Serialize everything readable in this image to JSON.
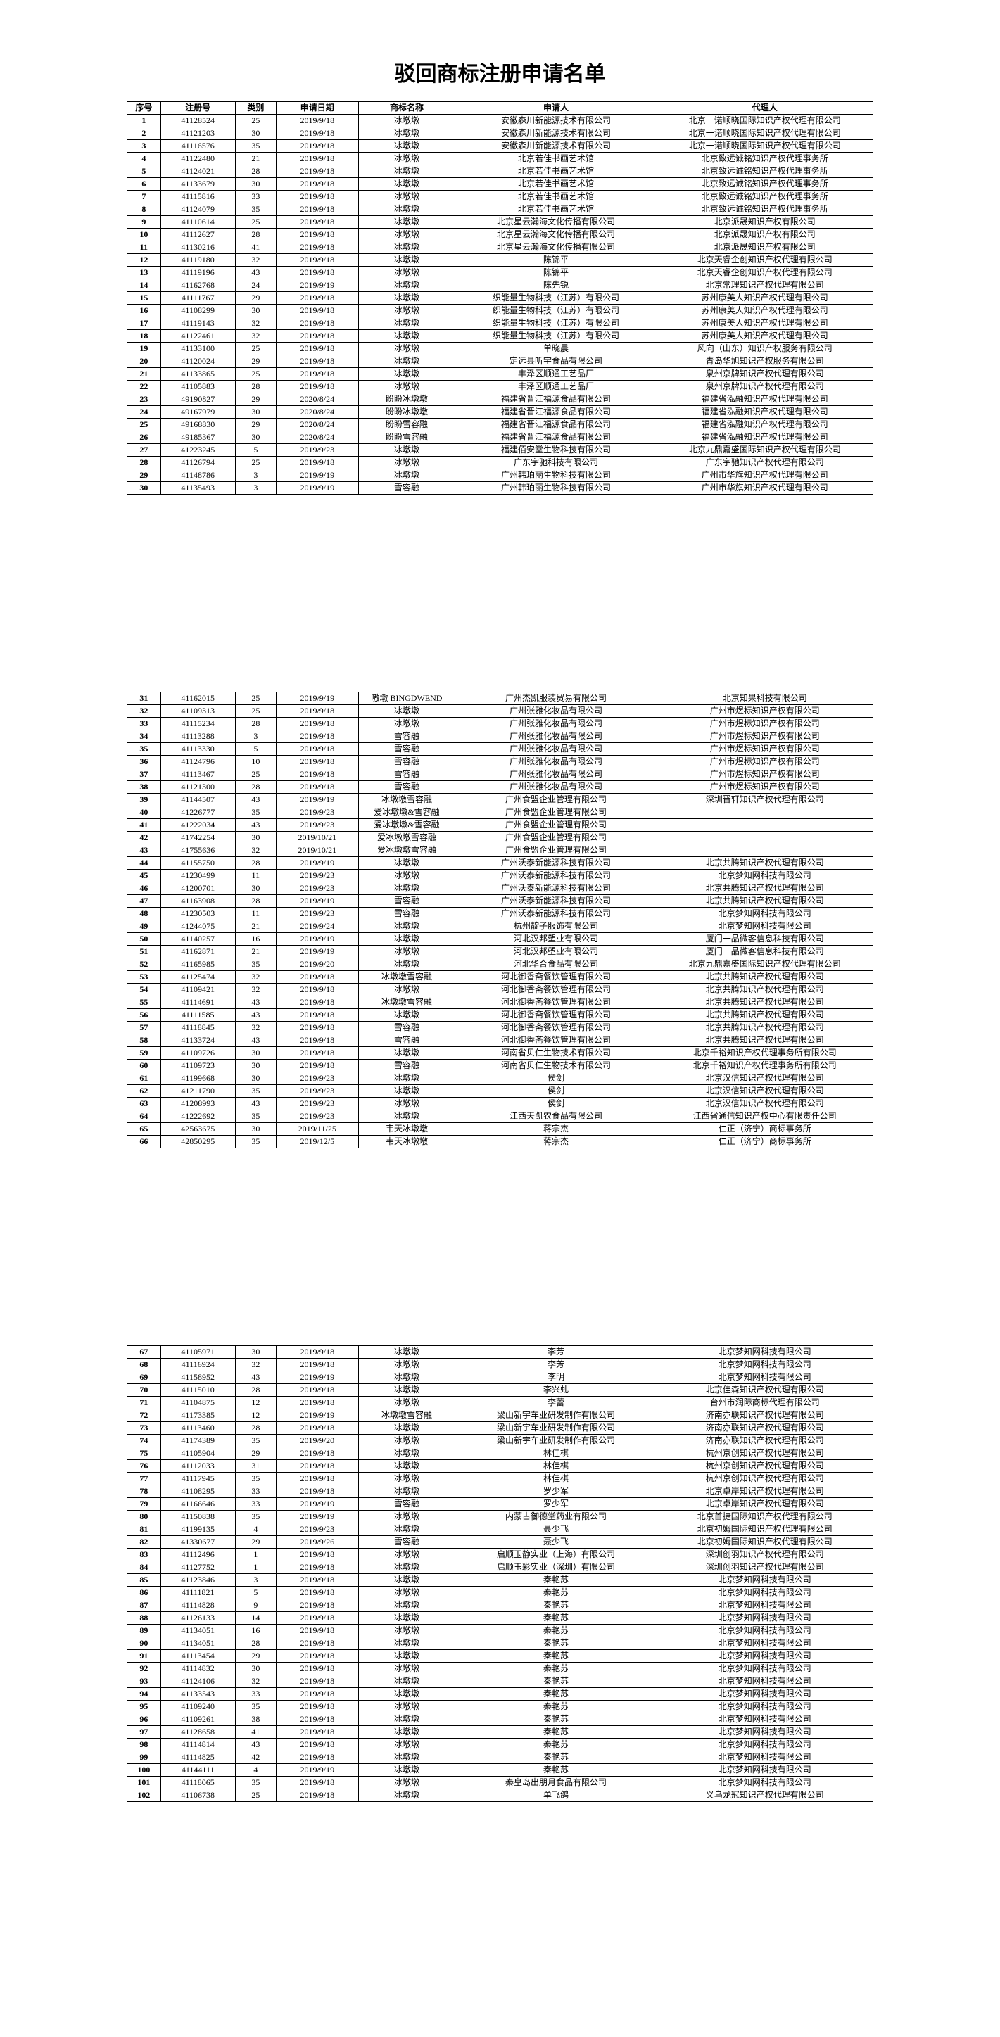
{
  "title": "驳回商标注册申请名单",
  "columns": [
    "序号",
    "注册号",
    "类别",
    "申请日期",
    "商标名称",
    "申请人",
    "代理人"
  ],
  "pages": [
    {
      "showTitle": true,
      "showHeader": true,
      "rows": [
        [
          "1",
          "41128524",
          "25",
          "2019/9/18",
          "冰墩墩",
          "安徽森川新能源技术有限公司",
          "北京一诺顺晓国际知识产权代理有限公司"
        ],
        [
          "2",
          "41121203",
          "30",
          "2019/9/18",
          "冰墩墩",
          "安徽森川新能源技术有限公司",
          "北京一诺顺晓国际知识产权代理有限公司"
        ],
        [
          "3",
          "41116576",
          "35",
          "2019/9/18",
          "冰墩墩",
          "安徽森川新能源技术有限公司",
          "北京一诺顺晓国际知识产权代理有限公司"
        ],
        [
          "4",
          "41122480",
          "21",
          "2019/9/18",
          "冰墩墩",
          "北京若佳书画艺术馆",
          "北京致远诚铭知识产权代理事务所"
        ],
        [
          "5",
          "41124021",
          "28",
          "2019/9/18",
          "冰墩墩",
          "北京若佳书画艺术馆",
          "北京致远诚铭知识产权代理事务所"
        ],
        [
          "6",
          "41133679",
          "30",
          "2019/9/18",
          "冰墩墩",
          "北京若佳书画艺术馆",
          "北京致远诚铭知识产权代理事务所"
        ],
        [
          "7",
          "41115816",
          "33",
          "2019/9/18",
          "冰墩墩",
          "北京若佳书画艺术馆",
          "北京致远诚铭知识产权代理事务所"
        ],
        [
          "8",
          "41124079",
          "35",
          "2019/9/18",
          "冰墩墩",
          "北京若佳书画艺术馆",
          "北京致远诚铭知识产权代理事务所"
        ],
        [
          "9",
          "41110614",
          "25",
          "2019/9/18",
          "冰墩墩",
          "北京星云瀚海文化传播有限公司",
          "北京派晟知识产权有限公司"
        ],
        [
          "10",
          "41112627",
          "28",
          "2019/9/18",
          "冰墩墩",
          "北京星云瀚海文化传播有限公司",
          "北京派晟知识产权有限公司"
        ],
        [
          "11",
          "41130216",
          "41",
          "2019/9/18",
          "冰墩墩",
          "北京星云瀚海文化传播有限公司",
          "北京派晟知识产权有限公司"
        ],
        [
          "12",
          "41119180",
          "32",
          "2019/9/18",
          "冰墩墩",
          "陈锦平",
          "北京天睿企创知识产权代理有限公司"
        ],
        [
          "13",
          "41119196",
          "43",
          "2019/9/18",
          "冰墩墩",
          "陈锦平",
          "北京天睿企创知识产权代理有限公司"
        ],
        [
          "14",
          "41162768",
          "24",
          "2019/9/19",
          "冰墩墩",
          "陈先锐",
          "北京常理知识产权代理有限公司"
        ],
        [
          "15",
          "41111767",
          "29",
          "2019/9/18",
          "冰墩墩",
          "织能量生物科技（江苏）有限公司",
          "苏州康美人知识产权代理有限公司"
        ],
        [
          "16",
          "41108299",
          "30",
          "2019/9/18",
          "冰墩墩",
          "织能量生物科技（江苏）有限公司",
          "苏州康美人知识产权代理有限公司"
        ],
        [
          "17",
          "41119143",
          "32",
          "2019/9/18",
          "冰墩墩",
          "织能量生物科技（江苏）有限公司",
          "苏州康美人知识产权代理有限公司"
        ],
        [
          "18",
          "41122461",
          "32",
          "2019/9/18",
          "冰墩墩",
          "织能量生物科技（江苏）有限公司",
          "苏州康美人知识产权代理有限公司"
        ],
        [
          "19",
          "41133100",
          "25",
          "2019/9/18",
          "冰墩墩",
          "单晓晨",
          "风向（山东）知识产权服务有限公司"
        ],
        [
          "20",
          "41120024",
          "29",
          "2019/9/18",
          "冰墩墩",
          "定远县听宇食品有限公司",
          "青岛华旭知识产权服务有限公司"
        ],
        [
          "21",
          "41133865",
          "25",
          "2019/9/18",
          "冰墩墩",
          "丰泽区顺通工艺品厂",
          "泉州京牌知识产权代理有限公司"
        ],
        [
          "22",
          "41105883",
          "28",
          "2019/9/18",
          "冰墩墩",
          "丰泽区顺通工艺品厂",
          "泉州京牌知识产权代理有限公司"
        ],
        [
          "23",
          "49190827",
          "29",
          "2020/8/24",
          "盼盼冰墩墩",
          "福建省晋江福源食品有限公司",
          "福建省泓融知识产权代理有限公司"
        ],
        [
          "24",
          "49167979",
          "30",
          "2020/8/24",
          "盼盼冰墩墩",
          "福建省晋江福源食品有限公司",
          "福建省泓融知识产权代理有限公司"
        ],
        [
          "25",
          "49168830",
          "29",
          "2020/8/24",
          "盼盼雪容融",
          "福建省晋江福源食品有限公司",
          "福建省泓融知识产权代理有限公司"
        ],
        [
          "26",
          "49185367",
          "30",
          "2020/8/24",
          "盼盼雪容融",
          "福建省晋江福源食品有限公司",
          "福建省泓融知识产权代理有限公司"
        ],
        [
          "27",
          "41223245",
          "5",
          "2019/9/23",
          "冰墩墩",
          "福建佰安堂生物科技有限公司",
          "北京九鼎嘉盛国际知识产权代理有限公司"
        ],
        [
          "28",
          "41126794",
          "25",
          "2019/9/18",
          "冰墩墩",
          "广东宇驰科技有限公司",
          "广东宇驰知识产权代理有限公司"
        ],
        [
          "29",
          "41148786",
          "3",
          "2019/9/19",
          "冰墩墩",
          "广州韩珀丽生物科技有限公司",
          "广州市华旗知识产权代理有限公司"
        ],
        [
          "30",
          "41135493",
          "3",
          "2019/9/19",
          "雪容融",
          "广州韩珀丽生物科技有限公司",
          "广州市华旗知识产权代理有限公司"
        ]
      ]
    },
    {
      "showTitle": false,
      "showHeader": false,
      "rows": [
        [
          "31",
          "41162015",
          "25",
          "2019/9/19",
          "嗷墩 BINGDWEND",
          "广州杰凯服装贸易有限公司",
          "北京知果科技有限公司"
        ],
        [
          "32",
          "41109313",
          "25",
          "2019/9/18",
          "冰墩墩",
          "广州张雅化妆品有限公司",
          "广州市煜标知识产权有限公司"
        ],
        [
          "33",
          "41115234",
          "28",
          "2019/9/18",
          "冰墩墩",
          "广州张雅化妆品有限公司",
          "广州市煜标知识产权有限公司"
        ],
        [
          "34",
          "41113288",
          "3",
          "2019/9/18",
          "雪容融",
          "广州张雅化妆品有限公司",
          "广州市煜标知识产权有限公司"
        ],
        [
          "35",
          "41113330",
          "5",
          "2019/9/18",
          "雪容融",
          "广州张雅化妆品有限公司",
          "广州市煜标知识产权有限公司"
        ],
        [
          "36",
          "41124796",
          "10",
          "2019/9/18",
          "雪容融",
          "广州张雅化妆品有限公司",
          "广州市煜标知识产权有限公司"
        ],
        [
          "37",
          "41113467",
          "25",
          "2019/9/18",
          "雪容融",
          "广州张雅化妆品有限公司",
          "广州市煜标知识产权有限公司"
        ],
        [
          "38",
          "41121300",
          "28",
          "2019/9/18",
          "雪容融",
          "广州张雅化妆品有限公司",
          "广州市煜标知识产权有限公司"
        ],
        [
          "39",
          "41144507",
          "43",
          "2019/9/19",
          "冰墩墩雪容融",
          "广州食盟企业管理有限公司",
          "深圳晋轩知识产权代理有限公司"
        ],
        [
          "40",
          "41226777",
          "35",
          "2019/9/23",
          "爱冰墩墩&雪容融",
          "广州食盟企业管理有限公司",
          ""
        ],
        [
          "41",
          "41222034",
          "43",
          "2019/9/23",
          "爱冰墩墩&雪容融",
          "广州食盟企业管理有限公司",
          ""
        ],
        [
          "42",
          "41742254",
          "30",
          "2019/10/21",
          "爱冰墩墩雪容融",
          "广州食盟企业管理有限公司",
          ""
        ],
        [
          "43",
          "41755636",
          "32",
          "2019/10/21",
          "爱冰墩墩雪容融",
          "广州食盟企业管理有限公司",
          ""
        ],
        [
          "44",
          "41155750",
          "28",
          "2019/9/19",
          "冰墩墩",
          "广州沃泰新能源科技有限公司",
          "北京共腾知识产权代理有限公司"
        ],
        [
          "45",
          "41230499",
          "11",
          "2019/9/23",
          "冰墩墩",
          "广州沃泰新能源科技有限公司",
          "北京梦知网科技有限公司"
        ],
        [
          "46",
          "41200701",
          "30",
          "2019/9/23",
          "冰墩墩",
          "广州沃泰新能源科技有限公司",
          "北京共腾知识产权代理有限公司"
        ],
        [
          "47",
          "41163908",
          "28",
          "2019/9/19",
          "雪容融",
          "广州沃泰新能源科技有限公司",
          "北京共腾知识产权代理有限公司"
        ],
        [
          "48",
          "41230503",
          "11",
          "2019/9/23",
          "雪容融",
          "广州沃泰新能源科技有限公司",
          "北京梦知网科技有限公司"
        ],
        [
          "49",
          "41244075",
          "21",
          "2019/9/24",
          "冰墩墩",
          "杭州靛子服饰有限公司",
          "北京梦知网科技有限公司"
        ],
        [
          "50",
          "41140257",
          "16",
          "2019/9/19",
          "冰墩墩",
          "河北汉邦塑业有限公司",
          "厦门一品微客信息科技有限公司"
        ],
        [
          "51",
          "41162871",
          "21",
          "2019/9/19",
          "冰墩墩",
          "河北汉邦塑业有限公司",
          "厦门一品微客信息科技有限公司"
        ],
        [
          "52",
          "41165985",
          "35",
          "2019/9/20",
          "冰墩墩",
          "河北华合食品有限公司",
          "北京九鼎嘉盛国际知识产权代理有限公司"
        ],
        [
          "53",
          "41125474",
          "32",
          "2019/9/18",
          "冰墩墩雪容融",
          "河北御香斋餐饮管理有限公司",
          "北京共腾知识产权代理有限公司"
        ],
        [
          "54",
          "41109421",
          "32",
          "2019/9/18",
          "冰墩墩",
          "河北御香斋餐饮管理有限公司",
          "北京共腾知识产权代理有限公司"
        ],
        [
          "55",
          "41114691",
          "43",
          "2019/9/18",
          "冰墩墩雪容融",
          "河北御香斋餐饮管理有限公司",
          "北京共腾知识产权代理有限公司"
        ],
        [
          "56",
          "41111585",
          "43",
          "2019/9/18",
          "冰墩墩",
          "河北御香斋餐饮管理有限公司",
          "北京共腾知识产权代理有限公司"
        ],
        [
          "57",
          "41118845",
          "32",
          "2019/9/18",
          "雪容融",
          "河北御香斋餐饮管理有限公司",
          "北京共腾知识产权代理有限公司"
        ],
        [
          "58",
          "41133724",
          "43",
          "2019/9/18",
          "雪容融",
          "河北御香斋餐饮管理有限公司",
          "北京共腾知识产权代理有限公司"
        ],
        [
          "59",
          "41109726",
          "30",
          "2019/9/18",
          "冰墩墩",
          "河南省贝仁生物技术有限公司",
          "北京千裕知识产权代理事务所有限公司"
        ],
        [
          "60",
          "41109723",
          "30",
          "2019/9/18",
          "雪容融",
          "河南省贝仁生物技术有限公司",
          "北京千裕知识产权代理事务所有限公司"
        ],
        [
          "61",
          "41199668",
          "30",
          "2019/9/23",
          "冰墩墩",
          "侯剑",
          "北京汉信知识产权代理有限公司"
        ],
        [
          "62",
          "41211790",
          "35",
          "2019/9/23",
          "冰墩墩",
          "侯剑",
          "北京汉信知识产权代理有限公司"
        ],
        [
          "63",
          "41208993",
          "43",
          "2019/9/23",
          "冰墩墩",
          "侯剑",
          "北京汉信知识产权代理有限公司"
        ],
        [
          "64",
          "41222692",
          "35",
          "2019/9/23",
          "冰墩墩",
          "江西天凯农食品有限公司",
          "江西省通信知识产权中心有限责任公司"
        ],
        [
          "65",
          "42563675",
          "30",
          "2019/11/25",
          "韦天冰墩墩",
          "蒋宗杰",
          "仁正（济宁）商标事务所"
        ],
        [
          "66",
          "42850295",
          "35",
          "2019/12/5",
          "韦天冰墩墩",
          "蒋宗杰",
          "仁正（济宁）商标事务所"
        ]
      ]
    },
    {
      "showTitle": false,
      "showHeader": false,
      "rows": [
        [
          "67",
          "41105971",
          "30",
          "2019/9/18",
          "冰墩墩",
          "李芳",
          "北京梦知网科技有限公司"
        ],
        [
          "68",
          "41116924",
          "32",
          "2019/9/18",
          "冰墩墩",
          "李芳",
          "北京梦知网科技有限公司"
        ],
        [
          "69",
          "41158952",
          "43",
          "2019/9/19",
          "冰墩墩",
          "李明",
          "北京梦知网科技有限公司"
        ],
        [
          "70",
          "41115010",
          "28",
          "2019/9/18",
          "冰墩墩",
          "李兴虬",
          "北京佳森知识产权代理有限公司"
        ],
        [
          "71",
          "41104875",
          "12",
          "2019/9/18",
          "冰墩墩",
          "李蕾",
          "台州市润际商标代理有限公司"
        ],
        [
          "72",
          "41173385",
          "12",
          "2019/9/19",
          "冰墩墩雪容融",
          "梁山新宇车业研发制作有限公司",
          "济南亦联知识产权代理有限公司"
        ],
        [
          "73",
          "41113460",
          "28",
          "2019/9/18",
          "冰墩墩",
          "梁山新宇车业研发制作有限公司",
          "济南亦联知识产权代理有限公司"
        ],
        [
          "74",
          "41174389",
          "35",
          "2019/9/20",
          "冰墩墩",
          "梁山新宇车业研发制作有限公司",
          "济南亦联知识产权代理有限公司"
        ],
        [
          "75",
          "41105904",
          "29",
          "2019/9/18",
          "冰墩墩",
          "林佳棋",
          "杭州京创知识产权代理有限公司"
        ],
        [
          "76",
          "41112033",
          "31",
          "2019/9/18",
          "冰墩墩",
          "林佳棋",
          "杭州京创知识产权代理有限公司"
        ],
        [
          "77",
          "41117945",
          "35",
          "2019/9/18",
          "冰墩墩",
          "林佳棋",
          "杭州京创知识产权代理有限公司"
        ],
        [
          "78",
          "41108295",
          "33",
          "2019/9/18",
          "冰墩墩",
          "罗少军",
          "北京卓岸知识产权代理有限公司"
        ],
        [
          "79",
          "41166646",
          "33",
          "2019/9/19",
          "雪容融",
          "罗少军",
          "北京卓岸知识产权代理有限公司"
        ],
        [
          "80",
          "41150838",
          "35",
          "2019/9/19",
          "冰墩墩",
          "内蒙古御德堂药业有限公司",
          "北京首捷国际知识产权代理有限公司"
        ],
        [
          "81",
          "41199135",
          "4",
          "2019/9/23",
          "冰墩墩",
          "聂少飞",
          "北京初姆国际知识产权代理有限公司"
        ],
        [
          "82",
          "41330677",
          "29",
          "2019/9/26",
          "雪容融",
          "聂少飞",
          "北京初姆国际知识产权代理有限公司"
        ],
        [
          "83",
          "41112496",
          "1",
          "2019/9/18",
          "冰墩墩",
          "启顺玉静实业（上海）有限公司",
          "深圳创羽知识产权代理有限公司"
        ],
        [
          "84",
          "41127752",
          "1",
          "2019/9/18",
          "冰墩墩",
          "启顺玉彩实业（深圳）有限公司",
          "深圳创羽知识产权代理有限公司"
        ],
        [
          "85",
          "41123846",
          "3",
          "2019/9/18",
          "冰墩墩",
          "秦艳苏",
          "北京梦知网科技有限公司"
        ],
        [
          "86",
          "41111821",
          "5",
          "2019/9/18",
          "冰墩墩",
          "秦艳苏",
          "北京梦知网科技有限公司"
        ],
        [
          "87",
          "41114828",
          "9",
          "2019/9/18",
          "冰墩墩",
          "秦艳苏",
          "北京梦知网科技有限公司"
        ],
        [
          "88",
          "41126133",
          "14",
          "2019/9/18",
          "冰墩墩",
          "秦艳苏",
          "北京梦知网科技有限公司"
        ],
        [
          "89",
          "41134051",
          "16",
          "2019/9/18",
          "冰墩墩",
          "秦艳苏",
          "北京梦知网科技有限公司"
        ],
        [
          "90",
          "41134051",
          "28",
          "2019/9/18",
          "冰墩墩",
          "秦艳苏",
          "北京梦知网科技有限公司"
        ],
        [
          "91",
          "41113454",
          "29",
          "2019/9/18",
          "冰墩墩",
          "秦艳苏",
          "北京梦知网科技有限公司"
        ],
        [
          "92",
          "41114832",
          "30",
          "2019/9/18",
          "冰墩墩",
          "秦艳苏",
          "北京梦知网科技有限公司"
        ],
        [
          "93",
          "41124106",
          "32",
          "2019/9/18",
          "冰墩墩",
          "秦艳苏",
          "北京梦知网科技有限公司"
        ],
        [
          "94",
          "41133543",
          "33",
          "2019/9/18",
          "冰墩墩",
          "秦艳苏",
          "北京梦知网科技有限公司"
        ],
        [
          "95",
          "41109240",
          "35",
          "2019/9/18",
          "冰墩墩",
          "秦艳苏",
          "北京梦知网科技有限公司"
        ],
        [
          "96",
          "41109261",
          "38",
          "2019/9/18",
          "冰墩墩",
          "秦艳苏",
          "北京梦知网科技有限公司"
        ],
        [
          "97",
          "41128658",
          "41",
          "2019/9/18",
          "冰墩墩",
          "秦艳苏",
          "北京梦知网科技有限公司"
        ],
        [
          "98",
          "41114814",
          "43",
          "2019/9/18",
          "冰墩墩",
          "秦艳苏",
          "北京梦知网科技有限公司"
        ],
        [
          "99",
          "41114825",
          "42",
          "2019/9/18",
          "冰墩墩",
          "秦艳苏",
          "北京梦知网科技有限公司"
        ],
        [
          "100",
          "41144111",
          "4",
          "2019/9/19",
          "冰墩墩",
          "秦艳苏",
          "北京梦知网科技有限公司"
        ],
        [
          "101",
          "41118065",
          "35",
          "2019/9/18",
          "冰墩墩",
          "秦皇岛出朋月食品有限公司",
          "北京梦知网科技有限公司"
        ],
        [
          "102",
          "41106738",
          "25",
          "2019/9/18",
          "冰墩墩",
          "单飞鸽",
          "义乌龙冠知识产权代理有限公司"
        ]
      ]
    }
  ]
}
